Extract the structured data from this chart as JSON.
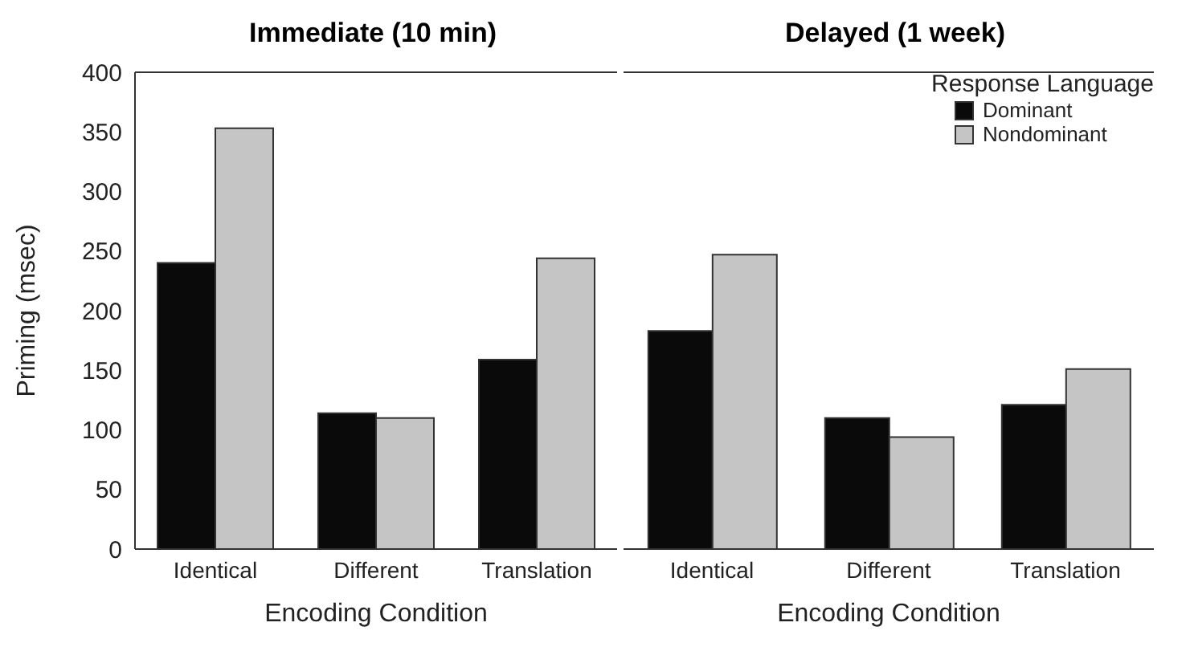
{
  "chart_data": [
    {
      "type": "bar",
      "title": "Immediate (10 min)",
      "xlabel": "Encoding Condition",
      "ylabel": "Priming (msec)",
      "categories": [
        "Identical",
        "Different",
        "Translation"
      ],
      "series": [
        {
          "color": "#0a0a0a",
          "values": [
            240,
            114,
            159
          ]
        },
        {
          "color": "#c4c5c4",
          "values": [
            353,
            110,
            244
          ]
        }
      ],
      "ylim": [
        0,
        400
      ],
      "yticks": [
        0,
        50,
        100,
        150,
        200,
        250,
        300,
        350,
        400
      ],
      "legend": false
    },
    {
      "type": "bar",
      "title": "Delayed (1 week)",
      "xlabel": "Encoding Condition",
      "categories": [
        "Identical",
        "Different",
        "Translation"
      ],
      "series": [
        {
          "name": "Dominant",
          "color": "#0a0a0a",
          "values": [
            183,
            110,
            121
          ]
        },
        {
          "name": "Nondominant",
          "color": "#c4c5c4",
          "values": [
            247,
            94,
            151
          ]
        }
      ],
      "ylim": [
        0,
        400
      ],
      "yticks": [
        0,
        50,
        100,
        150,
        200,
        250,
        300,
        350,
        400
      ],
      "tick_labels": "x",
      "legend": "top right",
      "legend_title": "Response Language"
    }
  ]
}
